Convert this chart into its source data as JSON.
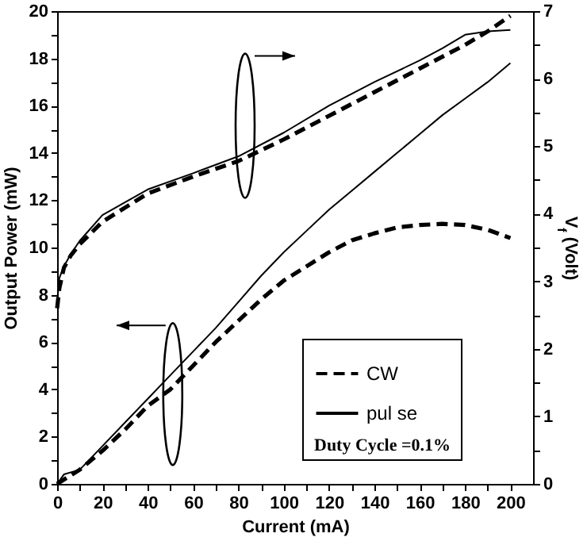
{
  "chart_data": {
    "type": "line",
    "xlabel": "Current (mA)",
    "ylabel": "Output Power (mW)",
    "y2label": "V$_{f}$ (Volt)",
    "xlim": [
      0,
      210
    ],
    "xticks": [
      0,
      {
        "value": 10,
        "label": null
      },
      20,
      {
        "value": 30,
        "label": null
      },
      40,
      {
        "value": 50,
        "label": null
      },
      60,
      {
        "value": 70,
        "label": null
      },
      80,
      {
        "value": 90,
        "label": null
      },
      100,
      {
        "value": 110,
        "label": null
      },
      120,
      {
        "value": 130,
        "label": null
      },
      140,
      {
        "value": 150,
        "label": null
      },
      160,
      {
        "value": 170,
        "label": null
      },
      180,
      {
        "value": 190,
        "label": null
      },
      200
    ],
    "ylim": [
      0,
      20
    ],
    "yticks": [
      0,
      {
        "value": 1,
        "label": null
      },
      2,
      {
        "value": 3,
        "label": null
      },
      4,
      {
        "value": 5,
        "label": null
      },
      6,
      {
        "value": 7,
        "label": null
      },
      8,
      {
        "value": 9,
        "label": null
      },
      10,
      {
        "value": 11,
        "label": null
      },
      12,
      {
        "value": 13,
        "label": null
      },
      14,
      {
        "value": 15,
        "label": null
      },
      16,
      {
        "value": 17,
        "label": null
      },
      18,
      {
        "value": 19,
        "label": null
      },
      20
    ],
    "y2lim": [
      0,
      7
    ],
    "y2ticks": [
      0,
      {
        "value": 0.5,
        "label": null
      },
      1,
      {
        "value": 1.5,
        "label": null
      },
      2,
      {
        "value": 2.5,
        "label": null
      },
      3,
      {
        "value": 3.5,
        "label": null
      },
      4,
      {
        "value": 4.5,
        "label": null
      },
      5,
      {
        "value": 5.5,
        "label": null
      },
      6,
      {
        "value": 6.5,
        "label": null
      },
      7
    ],
    "grid": false,
    "legend": "bottom right",
    "annotations": [
      "Duty Cycle =0.1%"
    ],
    "series": [
      {
        "name": "CW",
        "color": "#000000",
        "line_style": "dashed",
        "x": [
          0,
          5,
          10,
          20,
          30,
          40,
          50,
          60,
          70,
          80,
          90,
          100,
          110,
          120,
          130,
          140,
          150,
          160,
          170,
          180,
          190,
          200
        ],
        "values": [
          0,
          0.3,
          0.6,
          1.4,
          2.3,
          3.3,
          4.0,
          5.0,
          6.0,
          6.9,
          7.8,
          8.6,
          9.2,
          9.8,
          10.3,
          10.6,
          10.85,
          10.95,
          11.0,
          10.95,
          10.75,
          10.4
        ]
      },
      {
        "name": "pul se",
        "color": "#000000",
        "line_style": "solid",
        "x": [
          0,
          3,
          10,
          20,
          30,
          40,
          50,
          60,
          70,
          80,
          90,
          100,
          110,
          120,
          130,
          140,
          150,
          160,
          170,
          180,
          190,
          200
        ],
        "values": [
          0,
          0.4,
          0.6,
          1.6,
          2.6,
          3.6,
          4.6,
          5.6,
          6.6,
          7.7,
          8.8,
          9.8,
          10.7,
          11.6,
          12.4,
          13.2,
          14.0,
          14.8,
          15.6,
          16.3,
          17.0,
          17.8
        ]
      },
      {
        "color": "#000000",
        "line_style": "dashed",
        "axis": "y2",
        "x": [
          0,
          1,
          3,
          6,
          10,
          20,
          40,
          60,
          80,
          100,
          120,
          140,
          160,
          180,
          190,
          200
        ],
        "values": [
          2.6,
          2.9,
          3.2,
          3.38,
          3.55,
          3.88,
          4.3,
          4.55,
          4.78,
          5.1,
          5.45,
          5.8,
          6.15,
          6.5,
          6.7,
          6.93
        ]
      },
      {
        "color": "#000000",
        "line_style": "solid",
        "axis": "y2",
        "x": [
          0,
          1,
          3,
          6,
          10,
          20,
          40,
          60,
          80,
          100,
          120,
          140,
          160,
          170,
          180,
          190,
          200
        ],
        "values": [
          2.7,
          3.05,
          3.22,
          3.4,
          3.6,
          3.98,
          4.36,
          4.6,
          4.85,
          5.2,
          5.6,
          5.95,
          6.27,
          6.45,
          6.65,
          6.7,
          6.72
        ]
      }
    ]
  }
}
